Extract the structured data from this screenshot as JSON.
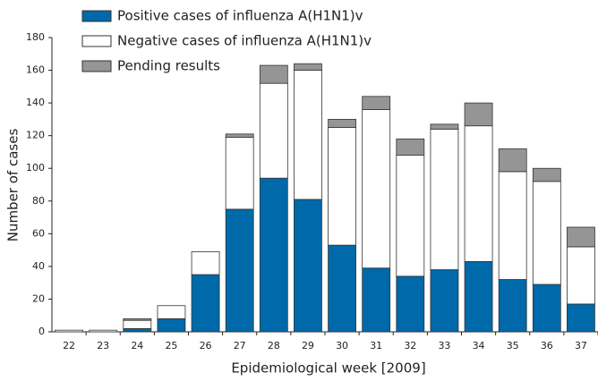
{
  "chart_data": {
    "type": "stacked_bar",
    "x_label": "Epidemiological week [2009]",
    "y_label": "Number of cases",
    "categories": [
      "22",
      "23",
      "24",
      "25",
      "26",
      "27",
      "28",
      "29",
      "30",
      "31",
      "32",
      "33",
      "34",
      "35",
      "36",
      "37"
    ],
    "series": [
      {
        "name": "Positive cases of influenza A(H1N1)v",
        "color": "#0069aa",
        "values": [
          0,
          0,
          2,
          8,
          35,
          75,
          94,
          81,
          53,
          39,
          34,
          38,
          43,
          32,
          29,
          17
        ]
      },
      {
        "name": "Negative cases of influenza A(H1N1)v",
        "color": "#ffffff",
        "values": [
          1,
          1,
          5,
          8,
          14,
          44,
          58,
          79,
          72,
          97,
          74,
          86,
          83,
          66,
          63,
          35
        ]
      },
      {
        "name": "Pending results",
        "color": "#959595",
        "values": [
          0,
          0,
          1,
          0,
          0,
          2,
          11,
          4,
          5,
          8,
          10,
          3,
          14,
          14,
          8,
          12
        ]
      }
    ],
    "ylim": [
      0,
      180
    ],
    "yticks": [
      0,
      20,
      40,
      60,
      80,
      100,
      120,
      140,
      160,
      180
    ],
    "grid": false
  }
}
